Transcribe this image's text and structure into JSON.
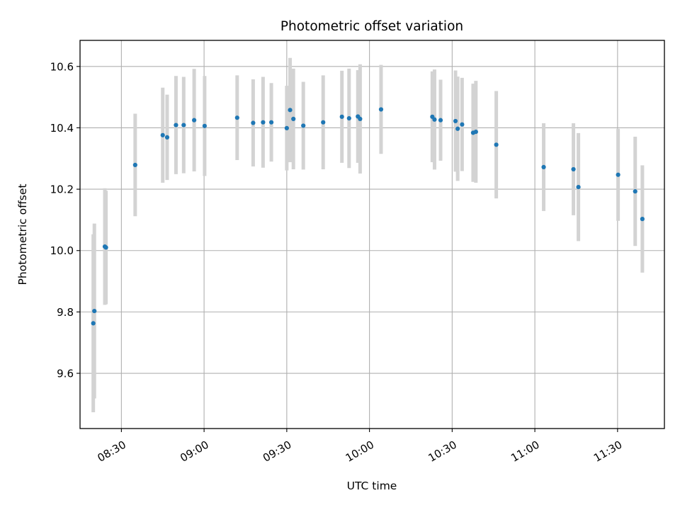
{
  "chart_data": {
    "type": "scatter",
    "title": "Photometric offset variation",
    "xlabel": "UTC time",
    "ylabel": "Photometric offset",
    "x_tick_labels": [
      "08:30",
      "09:00",
      "09:30",
      "10:00",
      "10:30",
      "11:00",
      "11:30"
    ],
    "x_ticks": [
      "08:30",
      "09:00",
      "09:30",
      "10:00",
      "10:30",
      "11:00",
      "11:30"
    ],
    "xlim": [
      "08:15",
      "11:47"
    ],
    "y_ticks": [
      9.6,
      9.8,
      10.0,
      10.2,
      10.4,
      10.6
    ],
    "y_tick_labels": [
      "9.6",
      "9.8",
      "10.0",
      "10.2",
      "10.4",
      "10.6"
    ],
    "ylim": [
      9.42,
      10.685
    ],
    "grid": true,
    "point_color": "#1f77b4",
    "errorbar_color": "#d3d3d3",
    "series": [
      {
        "points": [
          {
            "x": "08:19:48",
            "y": 9.763,
            "err": 0.29
          },
          {
            "x": "08:20:12",
            "y": 9.803,
            "err": 0.285
          },
          {
            "x": "08:24:00",
            "y": 10.013,
            "err": 0.19
          },
          {
            "x": "08:24:24",
            "y": 10.01,
            "err": 0.185
          },
          {
            "x": "08:35:00",
            "y": 10.279,
            "err": 0.167
          },
          {
            "x": "08:45:00",
            "y": 10.376,
            "err": 0.155
          },
          {
            "x": "08:46:36",
            "y": 10.369,
            "err": 0.139
          },
          {
            "x": "08:49:48",
            "y": 10.409,
            "err": 0.16
          },
          {
            "x": "08:52:36",
            "y": 10.409,
            "err": 0.157
          },
          {
            "x": "08:56:24",
            "y": 10.425,
            "err": 0.167
          },
          {
            "x": "09:00:12",
            "y": 10.406,
            "err": 0.163
          },
          {
            "x": "09:12:00",
            "y": 10.433,
            "err": 0.138
          },
          {
            "x": "09:17:48",
            "y": 10.416,
            "err": 0.142
          },
          {
            "x": "09:21:24",
            "y": 10.418,
            "err": 0.148
          },
          {
            "x": "09:24:24",
            "y": 10.418,
            "err": 0.128
          },
          {
            "x": "09:30:00",
            "y": 10.399,
            "err": 0.138
          },
          {
            "x": "09:31:12",
            "y": 10.458,
            "err": 0.17
          },
          {
            "x": "09:32:24",
            "y": 10.429,
            "err": 0.164
          },
          {
            "x": "09:36:00",
            "y": 10.407,
            "err": 0.143
          },
          {
            "x": "09:43:12",
            "y": 10.418,
            "err": 0.153
          },
          {
            "x": "09:50:00",
            "y": 10.436,
            "err": 0.15
          },
          {
            "x": "09:52:36",
            "y": 10.431,
            "err": 0.162
          },
          {
            "x": "09:55:48",
            "y": 10.437,
            "err": 0.151
          },
          {
            "x": "09:56:36",
            "y": 10.429,
            "err": 0.178
          },
          {
            "x": "10:04:12",
            "y": 10.46,
            "err": 0.145
          },
          {
            "x": "10:22:48",
            "y": 10.436,
            "err": 0.148
          },
          {
            "x": "10:23:36",
            "y": 10.427,
            "err": 0.163
          },
          {
            "x": "10:25:48",
            "y": 10.425,
            "err": 0.132
          },
          {
            "x": "10:31:12",
            "y": 10.422,
            "err": 0.165
          },
          {
            "x": "10:32:00",
            "y": 10.397,
            "err": 0.17
          },
          {
            "x": "10:33:36",
            "y": 10.411,
            "err": 0.152
          },
          {
            "x": "10:37:36",
            "y": 10.384,
            "err": 0.16
          },
          {
            "x": "10:38:36",
            "y": 10.387,
            "err": 0.166
          },
          {
            "x": "10:46:00",
            "y": 10.345,
            "err": 0.175
          },
          {
            "x": "11:03:12",
            "y": 10.272,
            "err": 0.143
          },
          {
            "x": "11:14:00",
            "y": 10.265,
            "err": 0.15
          },
          {
            "x": "11:15:48",
            "y": 10.207,
            "err": 0.176
          },
          {
            "x": "11:30:12",
            "y": 10.247,
            "err": 0.15
          },
          {
            "x": "11:36:24",
            "y": 10.193,
            "err": 0.178
          },
          {
            "x": "11:39:00",
            "y": 10.103,
            "err": 0.175
          }
        ]
      }
    ]
  }
}
